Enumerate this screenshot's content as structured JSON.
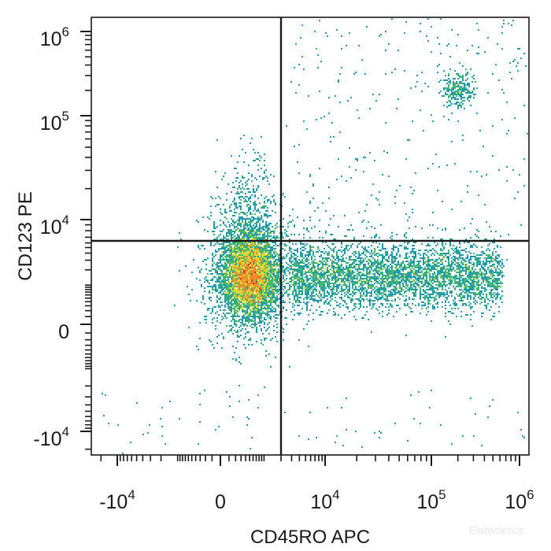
{
  "chart_data": {
    "type": "scatter",
    "style": "flow cytometry density dot plot, pseudo-color (blue low density to red high density), biexponential axes",
    "xlabel": "CD45RO APC",
    "ylabel": "CD123 PE",
    "x_scale": "biexponential",
    "y_scale": "biexponential",
    "x_range": [
      -30000,
      1000000
    ],
    "y_range": [
      -25000,
      1000000
    ],
    "x_ticks": [
      {
        "value": -10000,
        "base": "-10",
        "exp": "4"
      },
      {
        "value": 0,
        "base": "0",
        "exp": ""
      },
      {
        "value": 10000,
        "base": "10",
        "exp": "4"
      },
      {
        "value": 100000,
        "base": "10",
        "exp": "5"
      },
      {
        "value": 1000000,
        "base": "10",
        "exp": "6"
      }
    ],
    "y_ticks": [
      {
        "value": 1000000,
        "base": "10",
        "exp": "6"
      },
      {
        "value": 100000,
        "base": "10",
        "exp": "5"
      },
      {
        "value": 10000,
        "base": "10",
        "exp": "4"
      },
      {
        "value": 0,
        "base": "0",
        "exp": ""
      },
      {
        "value": -10000,
        "base": "-10",
        "exp": "4"
      }
    ],
    "quadrant_gate": {
      "x": 2000,
      "y": 6500
    },
    "populations": [
      {
        "label": "CD45RO- CD123- (dense main population)",
        "x": 500,
        "y": 1500,
        "density": "very high"
      },
      {
        "label": "CD45RO+ CD123- (horizontal band)",
        "x_range": [
          3000,
          600000
        ],
        "y": 1500,
        "density": "medium"
      },
      {
        "label": "CD45RO- CD123+ (sparse upward spread)",
        "x": 0,
        "y_range": [
          6500,
          40000
        ],
        "density": "low"
      },
      {
        "label": "CD45RO+ CD123++ (small cluster)",
        "x": 200000,
        "y": 200000,
        "density": "medium"
      },
      {
        "label": "scattered events",
        "density": "sparse"
      }
    ],
    "colors": {
      "density_low": "#2b4fb3",
      "density_midlow": "#1f9bb0",
      "density_mid": "#48b86a",
      "density_midhigh": "#d9d93a",
      "density_high": "#f08a2a",
      "density_max": "#e21f1f",
      "gate_line": "#1a1a1a",
      "frame": "#1a1a1a"
    }
  },
  "watermark": "Elabscience"
}
